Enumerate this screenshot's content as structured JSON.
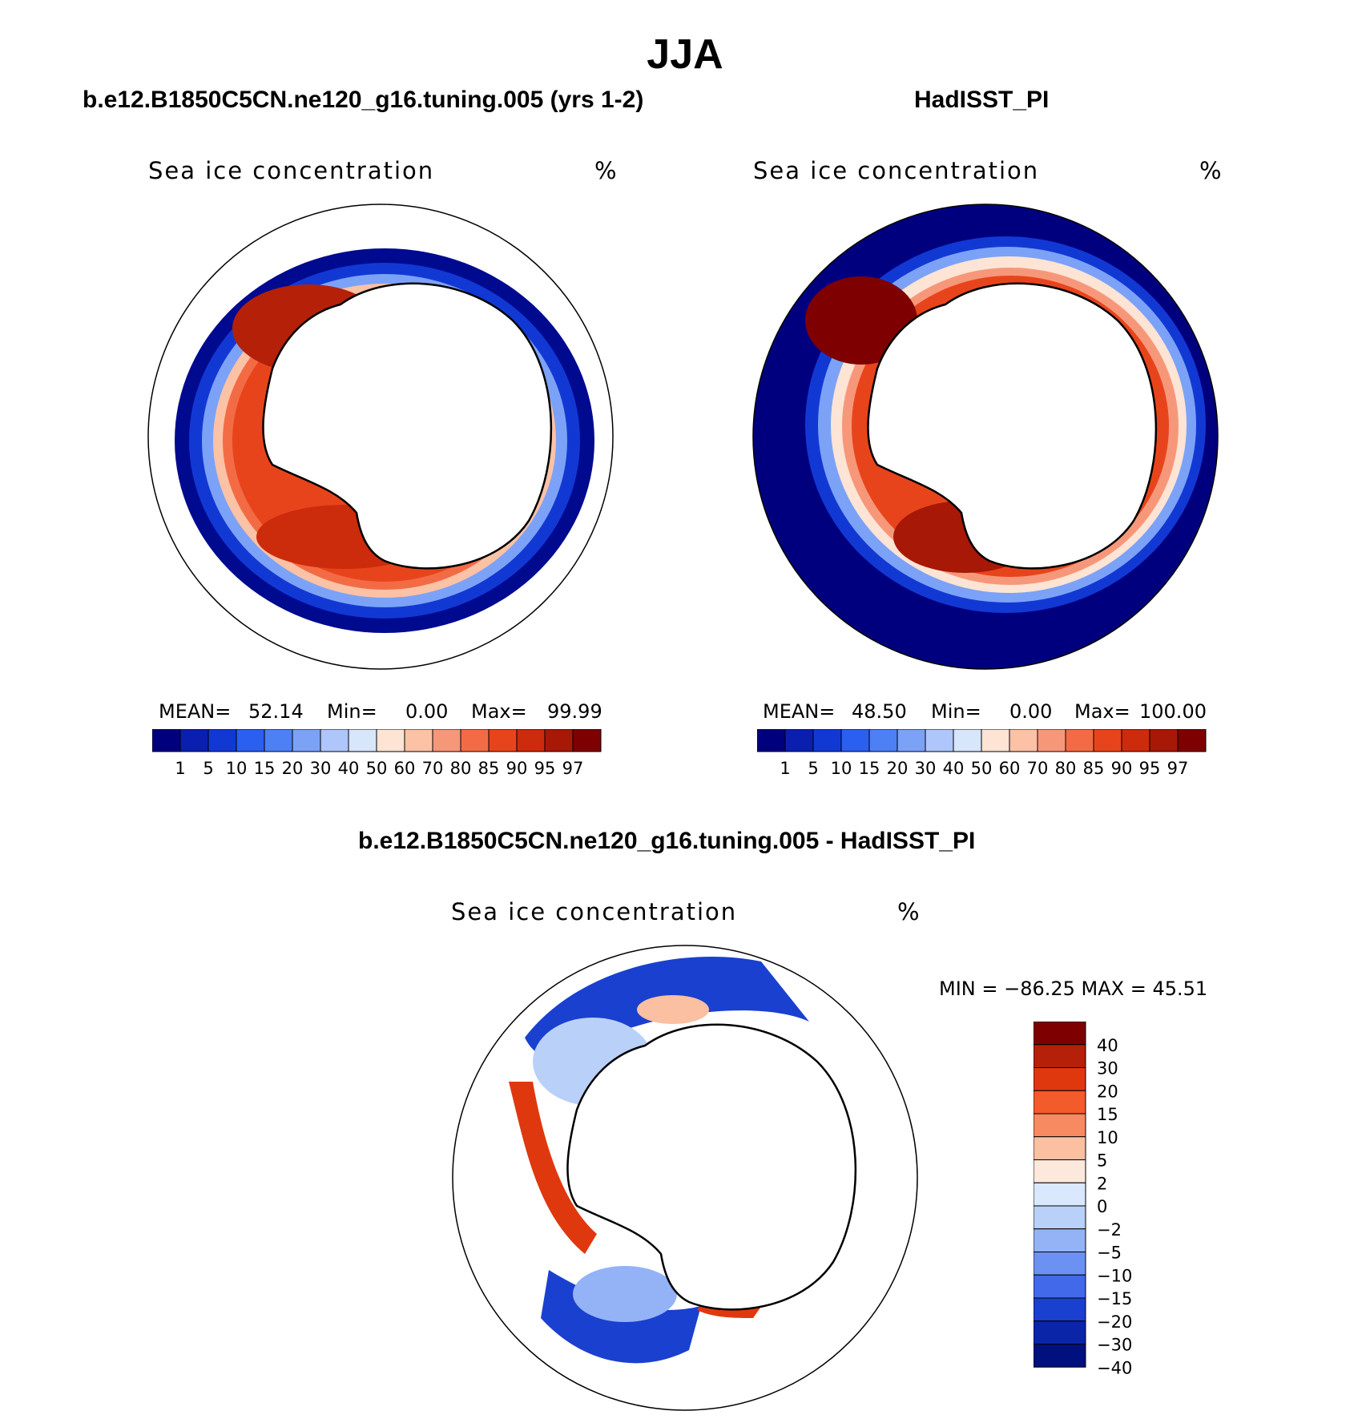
{
  "figure_title": "JJA",
  "panels": {
    "model": {
      "title": "b.e12.B1850C5CN.ne120_g16.tuning.005 (yrs 1-2)",
      "variable": "Sea ice concentration",
      "units": "%",
      "stats": {
        "mean_label": "MEAN=",
        "mean": "52.14",
        "min_label": "Min=",
        "min": "0.00",
        "max_label": "Max=",
        "max": "99.99"
      }
    },
    "obs": {
      "title": "HadISST_PI",
      "variable": "Sea ice concentration",
      "units": "%",
      "stats": {
        "mean_label": "MEAN=",
        "mean": "48.50",
        "min_label": "Min=",
        "min": "0.00",
        "max_label": "Max=",
        "max": "100.00"
      }
    },
    "diff": {
      "title": "b.e12.B1850C5CN.ne120_g16.tuning.005 - HadISST_PI",
      "variable": "Sea ice concentration",
      "units": "%",
      "minmax": "MIN = −86.25 MAX =   45.51"
    }
  },
  "colorbar_concentration": {
    "labels": [
      "1",
      "5",
      "10",
      "15",
      "20",
      "30",
      "40",
      "50",
      "60",
      "70",
      "80",
      "85",
      "90",
      "95",
      "97"
    ],
    "colors": [
      "#00007f",
      "#0a1fb0",
      "#1238d4",
      "#2a5ff0",
      "#4d7ff5",
      "#7ca2f7",
      "#aec6f9",
      "#d7e6fb",
      "#fde4d4",
      "#fbc2a6",
      "#f7977a",
      "#f36b45",
      "#e8441c",
      "#cc2b0c",
      "#a81806",
      "#7f0000"
    ]
  },
  "colorbar_difference": {
    "labels": [
      "40",
      "30",
      "20",
      "15",
      "10",
      "5",
      "2",
      "0",
      "−2",
      "−5",
      "−10",
      "−15",
      "−20",
      "−30",
      "−40"
    ],
    "colors": [
      "#7f0000",
      "#b52008",
      "#e0380e",
      "#f45b2a",
      "#f88a62",
      "#fbbfa1",
      "#fde8dc",
      "#d9e8fc",
      "#b9d0f9",
      "#93b3f6",
      "#6b92f2",
      "#4169ea",
      "#1a40cf",
      "#0a25a8",
      "#00107f"
    ]
  }
}
